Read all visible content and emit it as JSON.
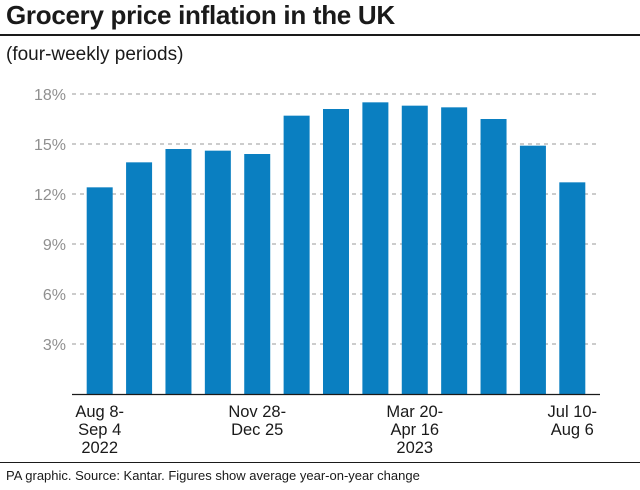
{
  "title": "Grocery price inflation in the UK",
  "subtitle": "(four-weekly periods)",
  "footer": "PA graphic. Source: Kantar. Figures show average year-on-year change",
  "colors": {
    "bar": "#0a7fc1",
    "grid": "#9a9a9a",
    "axis": "#1a1a1a"
  },
  "chart_data": {
    "type": "bar",
    "title": "Grocery price inflation in the UK",
    "subtitle": "(four-weekly periods)",
    "values": [
      12.4,
      13.9,
      14.7,
      14.6,
      14.4,
      16.7,
      17.1,
      17.5,
      17.3,
      17.2,
      16.5,
      14.9,
      12.7
    ],
    "category_labels": [
      {
        "index": 0,
        "lines": [
          "Aug 8-",
          "Sep 4",
          "2022"
        ]
      },
      {
        "index": 4,
        "lines": [
          "Nov 28-",
          "Dec 25"
        ]
      },
      {
        "index": 8,
        "lines": [
          "Mar 20-",
          "Apr 16",
          "2023"
        ]
      },
      {
        "index": 12,
        "lines": [
          "Jul 10-",
          "Aug 6"
        ]
      }
    ],
    "yticks": [
      "3%",
      "6%",
      "9%",
      "12%",
      "15%",
      "18%"
    ],
    "ytick_values": [
      3,
      6,
      9,
      12,
      15,
      18
    ],
    "ylim": [
      0,
      18.5
    ],
    "grid": true,
    "legend": "none"
  }
}
